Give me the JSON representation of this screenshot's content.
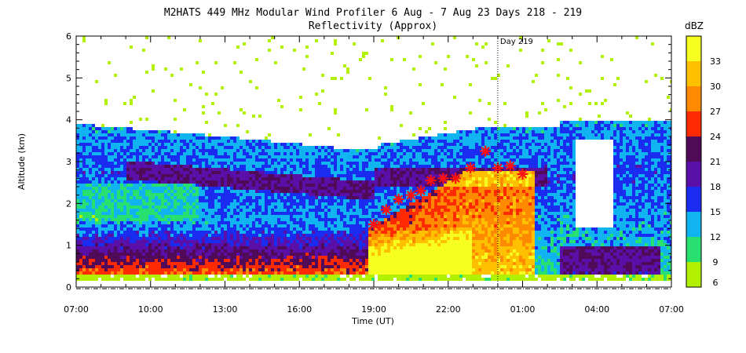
{
  "chart_data": {
    "type": "heatmap",
    "title": "M2HATS 449 MHz Modular Wind Profiler   6 Aug -  7 Aug 23 Days 218 - 219",
    "subtitle": "Reflectivity (Approx)",
    "xlabel": "Time (UT)",
    "ylabel": "Altitude (km)",
    "x_range_hours": [
      7,
      31
    ],
    "ylim": [
      0,
      6
    ],
    "x_ticks": [
      {
        "h": 7,
        "label": "07:00"
      },
      {
        "h": 10,
        "label": "10:00"
      },
      {
        "h": 13,
        "label": "13:00"
      },
      {
        "h": 16,
        "label": "16:00"
      },
      {
        "h": 19,
        "label": "19:00"
      },
      {
        "h": 22,
        "label": "22:00"
      },
      {
        "h": 25,
        "label": "01:00"
      },
      {
        "h": 28,
        "label": "04:00"
      },
      {
        "h": 31,
        "label": "07:00"
      }
    ],
    "y_ticks": [
      0,
      1,
      2,
      3,
      4,
      5,
      6
    ],
    "colorbar": {
      "title": "dBZ",
      "levels": [
        6,
        9,
        12,
        15,
        18,
        21,
        24,
        27,
        30,
        33
      ],
      "colors": [
        "#b0f000",
        "#28e070",
        "#10b4f0",
        "#1a2cf0",
        "#5a10a8",
        "#500a58",
        "#ff2a00",
        "#ff8a00",
        "#ffc000",
        "#f6ff20"
      ]
    },
    "day_marker": {
      "h": 24,
      "label": "Day 219"
    },
    "markers_label": "*",
    "markers": [
      {
        "h": 19.0,
        "alt": 1.5
      },
      {
        "h": 19.5,
        "alt": 1.85
      },
      {
        "h": 20.0,
        "alt": 2.1
      },
      {
        "h": 20.5,
        "alt": 2.2
      },
      {
        "h": 20.9,
        "alt": 2.3
      },
      {
        "h": 21.3,
        "alt": 2.55
      },
      {
        "h": 21.8,
        "alt": 2.6
      },
      {
        "h": 22.3,
        "alt": 2.6
      },
      {
        "h": 22.9,
        "alt": 2.85
      },
      {
        "h": 23.5,
        "alt": 3.25
      },
      {
        "h": 24.0,
        "alt": 2.85
      },
      {
        "h": 24.5,
        "alt": 2.9
      },
      {
        "h": 25.0,
        "alt": 2.7
      }
    ]
  }
}
